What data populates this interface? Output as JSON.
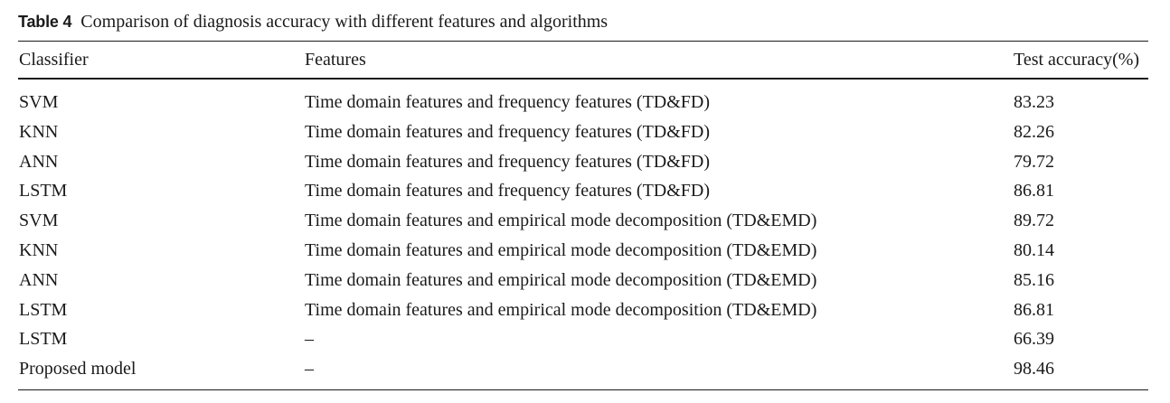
{
  "table": {
    "caption_label": "Table 4",
    "caption_text": "Comparison of diagnosis accuracy with different features and algorithms",
    "headers": {
      "classifier": "Classifier",
      "features": "Features",
      "accuracy": "Test accuracy(%)"
    },
    "rows": [
      {
        "classifier": "SVM",
        "features": "Time domain features and frequency features (TD&FD)",
        "accuracy": "83.23"
      },
      {
        "classifier": "KNN",
        "features": "Time domain features and frequency features (TD&FD)",
        "accuracy": "82.26"
      },
      {
        "classifier": "ANN",
        "features": "Time domain features and frequency features (TD&FD)",
        "accuracy": "79.72"
      },
      {
        "classifier": "LSTM",
        "features": "Time domain features and frequency features (TD&FD)",
        "accuracy": "86.81"
      },
      {
        "classifier": "SVM",
        "features": "Time domain features and empirical mode decomposition (TD&EMD)",
        "accuracy": "89.72"
      },
      {
        "classifier": "KNN",
        "features": "Time domain features and empirical mode decomposition (TD&EMD)",
        "accuracy": "80.14"
      },
      {
        "classifier": "ANN",
        "features": "Time domain features and empirical mode decomposition (TD&EMD)",
        "accuracy": "85.16"
      },
      {
        "classifier": "LSTM",
        "features": "Time domain features and empirical mode decomposition (TD&EMD)",
        "accuracy": "86.81"
      },
      {
        "classifier": "LSTM",
        "features": "–",
        "accuracy": "66.39"
      },
      {
        "classifier": "Proposed model",
        "features": "–",
        "accuracy": "98.46"
      }
    ]
  }
}
